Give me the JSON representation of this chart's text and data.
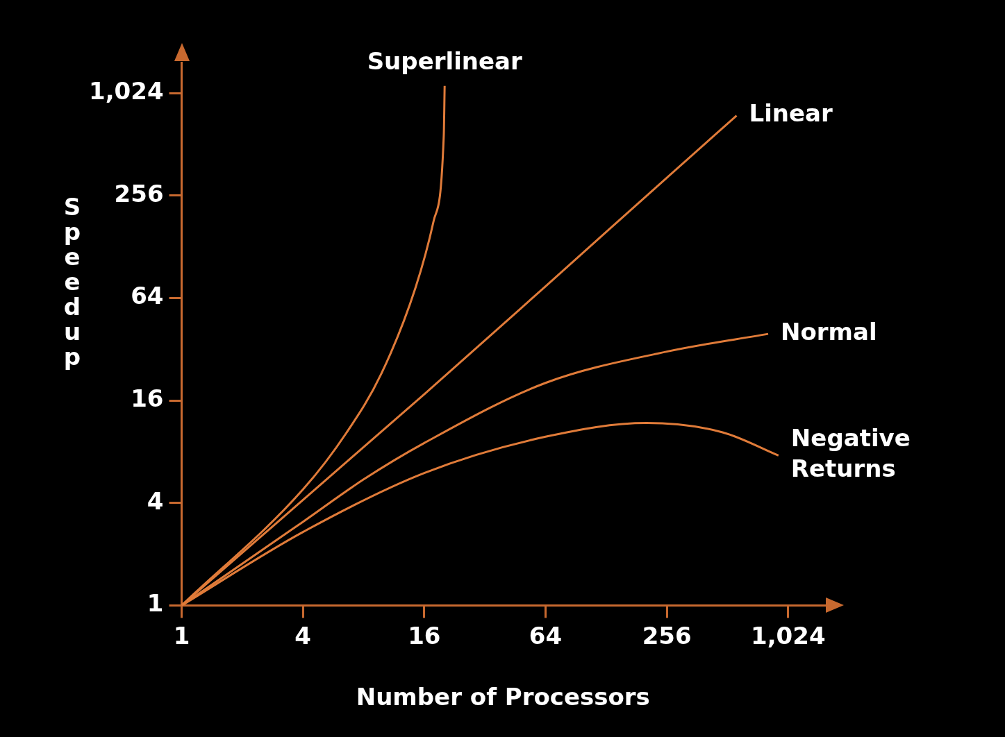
{
  "chart_data": {
    "type": "line",
    "xlabel": "Number of Processors",
    "ylabel": "Speedup",
    "log": "xy",
    "grid": false,
    "legend": false,
    "marker": "none",
    "line_style": "solid",
    "xlim": [
      1,
      1550
    ],
    "ylim": [
      1,
      1550
    ],
    "xticks": [
      1,
      4,
      16,
      64,
      256,
      {
        "value": 1024,
        "label": "1,024"
      }
    ],
    "yticks": [
      1,
      4,
      16,
      64,
      256,
      {
        "value": 1024,
        "label": "1,024"
      }
    ],
    "series": [
      {
        "name": "Superlinear",
        "color": "#e07b39",
        "x": [
          1,
          4,
          6.6,
          9.8,
          14.5,
          17.8,
          20,
          20.2
        ],
        "values": [
          1,
          4.8,
          10.4,
          23,
          74,
          181,
          576,
          1130
        ]
      },
      {
        "name": "Linear",
        "color": "#e07b39",
        "x": [
          1,
          16,
          64,
          256,
          568
        ],
        "values": [
          1,
          17.4,
          75,
          326,
          755
        ]
      },
      {
        "name": "Normal",
        "color": "#e07b39",
        "x": [
          1,
          4,
          8,
          16,
          64,
          256,
          815
        ],
        "values": [
          1,
          3.1,
          5.5,
          9,
          20.3,
          31,
          39.4
        ]
      },
      {
        "name": "Negative Returns",
        "color": "#e07b39",
        "x": [
          1,
          4,
          16,
          64,
          203,
          484,
          917
        ],
        "values": [
          1,
          2.7,
          6,
          9.8,
          11.8,
          10.4,
          7.6
        ]
      }
    ]
  }
}
